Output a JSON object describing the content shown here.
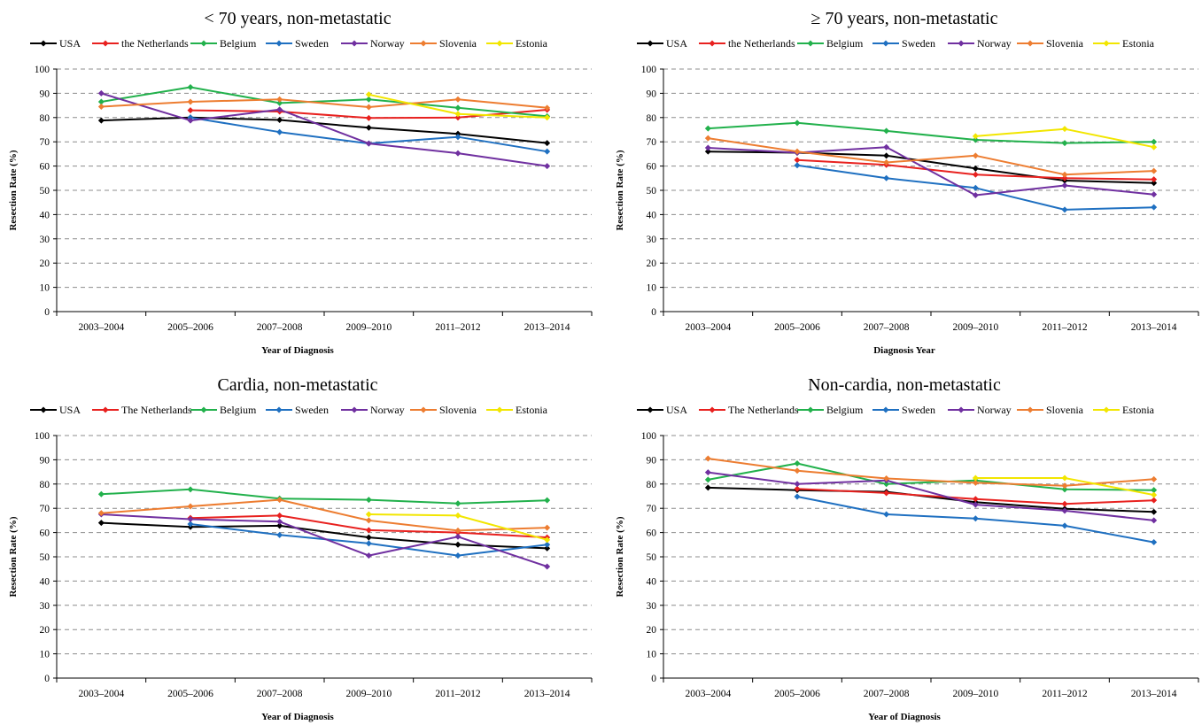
{
  "chart_data": [
    {
      "type": "line",
      "title": "< 70 years, non-metastatic",
      "xlabel": "Year of Diagnosis",
      "ylabel": "Resection Rate (%)",
      "ylim": [
        0,
        100
      ],
      "yticks": [
        0,
        10,
        20,
        30,
        40,
        50,
        60,
        70,
        80,
        90,
        100
      ],
      "grid": true,
      "legend": "top",
      "categories": [
        "2003–2004",
        "2005–2006",
        "2007–2008",
        "2009–2010",
        "2011–2012",
        "2013–2014"
      ],
      "series": [
        {
          "name": "USA",
          "color": "#000000",
          "values": [
            78.8,
            80.0,
            79.0,
            75.8,
            73.3,
            69.5
          ]
        },
        {
          "name": "the Netherlands",
          "color": "#e8211f",
          "values": [
            null,
            83.0,
            82.5,
            79.8,
            80.0,
            83.2
          ]
        },
        {
          "name": "Belgium",
          "color": "#22b14c",
          "values": [
            86.5,
            92.5,
            86.0,
            87.5,
            84.0,
            80.5
          ]
        },
        {
          "name": "Sweden",
          "color": "#1f70c1",
          "values": [
            null,
            80.0,
            74.0,
            69.3,
            72.0,
            66.0
          ]
        },
        {
          "name": "Norway",
          "color": "#7030a0",
          "values": [
            90.0,
            78.8,
            83.3,
            69.3,
            65.3,
            60.0
          ]
        },
        {
          "name": "Slovenia",
          "color": "#ed7d31",
          "values": [
            84.5,
            86.5,
            87.5,
            84.3,
            87.5,
            84.0
          ]
        },
        {
          "name": "Estonia",
          "color": "#f2e600",
          "values": [
            null,
            null,
            null,
            89.5,
            81.5,
            80.0
          ]
        }
      ]
    },
    {
      "type": "line",
      "title": "≥ 70 years, non-metastatic",
      "xlabel": "Diagnosis Year",
      "ylabel": "Resection Rate (%)",
      "ylim": [
        0,
        100
      ],
      "yticks": [
        0,
        10,
        20,
        30,
        40,
        50,
        60,
        70,
        80,
        90,
        100
      ],
      "grid": true,
      "legend": "top",
      "categories": [
        "2003–2004",
        "2005–2006",
        "2007–2008",
        "2009–2010",
        "2011–2012",
        "2013–2014"
      ],
      "series": [
        {
          "name": "USA",
          "color": "#000000",
          "values": [
            66.0,
            65.5,
            64.3,
            59.0,
            54.0,
            53.0
          ]
        },
        {
          "name": "the Netherlands",
          "color": "#e8211f",
          "values": [
            null,
            62.5,
            60.5,
            56.5,
            55.0,
            54.5
          ]
        },
        {
          "name": "Belgium",
          "color": "#22b14c",
          "values": [
            75.5,
            77.8,
            74.5,
            70.8,
            69.5,
            70.0
          ]
        },
        {
          "name": "Sweden",
          "color": "#1f70c1",
          "values": [
            null,
            60.3,
            55.0,
            51.0,
            42.0,
            43.0
          ]
        },
        {
          "name": "Norway",
          "color": "#7030a0",
          "values": [
            67.5,
            65.5,
            67.8,
            48.0,
            52.0,
            48.3
          ]
        },
        {
          "name": "Slovenia",
          "color": "#ed7d31",
          "values": [
            71.5,
            66.0,
            61.5,
            64.3,
            56.5,
            58.0
          ]
        },
        {
          "name": "Estonia",
          "color": "#f2e600",
          "values": [
            null,
            null,
            null,
            72.3,
            75.3,
            67.8
          ]
        }
      ]
    },
    {
      "type": "line",
      "title": "Cardia, non-metastatic",
      "xlabel": "Year of Diagnosis",
      "ylabel": "Resection Rate (%)",
      "ylim": [
        0,
        100
      ],
      "yticks": [
        0,
        10,
        20,
        30,
        40,
        50,
        60,
        70,
        80,
        90,
        100
      ],
      "grid": true,
      "legend": "top",
      "categories": [
        "2003–2004",
        "2005–2006",
        "2007–2008",
        "2009–2010",
        "2011–2012",
        "2013–2014"
      ],
      "series": [
        {
          "name": "USA",
          "color": "#000000",
          "values": [
            64.0,
            62.3,
            62.8,
            58.0,
            55.0,
            53.5
          ]
        },
        {
          "name": "The Netherlands",
          "color": "#e8211f",
          "values": [
            null,
            66.0,
            67.0,
            61.0,
            60.0,
            58.0
          ]
        },
        {
          "name": "Belgium",
          "color": "#22b14c",
          "values": [
            75.8,
            77.8,
            74.0,
            73.5,
            72.0,
            73.3
          ]
        },
        {
          "name": "Sweden",
          "color": "#1f70c1",
          "values": [
            null,
            63.5,
            59.0,
            55.5,
            50.5,
            55.0
          ]
        },
        {
          "name": "Norway",
          "color": "#7030a0",
          "values": [
            67.5,
            65.5,
            64.5,
            50.5,
            58.3,
            46.0
          ]
        },
        {
          "name": "Slovenia",
          "color": "#ed7d31",
          "values": [
            68.0,
            70.8,
            73.5,
            65.0,
            60.8,
            62.0
          ]
        },
        {
          "name": "Estonia",
          "color": "#f2e600",
          "values": [
            null,
            null,
            null,
            67.5,
            67.0,
            57.0
          ]
        }
      ]
    },
    {
      "type": "line",
      "title": "Non-cardia, non-metastatic",
      "xlabel": "Year of Diagnosis",
      "ylabel": "Resection Rate (%)",
      "ylim": [
        0,
        100
      ],
      "yticks": [
        0,
        10,
        20,
        30,
        40,
        50,
        60,
        70,
        80,
        90,
        100
      ],
      "grid": true,
      "legend": "top",
      "categories": [
        "2003–2004",
        "2005–2006",
        "2007–2008",
        "2009–2010",
        "2011–2012",
        "2013–2014"
      ],
      "series": [
        {
          "name": "USA",
          "color": "#000000",
          "values": [
            78.5,
            77.5,
            76.8,
            72.5,
            69.8,
            68.5
          ]
        },
        {
          "name": "The Netherlands",
          "color": "#e8211f",
          "values": [
            null,
            78.0,
            76.3,
            73.8,
            71.8,
            73.3
          ]
        },
        {
          "name": "Belgium",
          "color": "#22b14c",
          "values": [
            81.8,
            88.5,
            80.0,
            81.5,
            77.8,
            77.5
          ]
        },
        {
          "name": "Sweden",
          "color": "#1f70c1",
          "values": [
            null,
            74.8,
            67.5,
            65.8,
            62.8,
            56.0
          ]
        },
        {
          "name": "Norway",
          "color": "#7030a0",
          "values": [
            84.8,
            80.0,
            81.5,
            71.5,
            69.0,
            65.0
          ]
        },
        {
          "name": "Slovenia",
          "color": "#ed7d31",
          "values": [
            90.5,
            85.5,
            82.3,
            80.5,
            79.3,
            82.0
          ]
        },
        {
          "name": "Estonia",
          "color": "#f2e600",
          "values": [
            null,
            null,
            null,
            82.5,
            82.5,
            75.5
          ]
        }
      ]
    }
  ]
}
